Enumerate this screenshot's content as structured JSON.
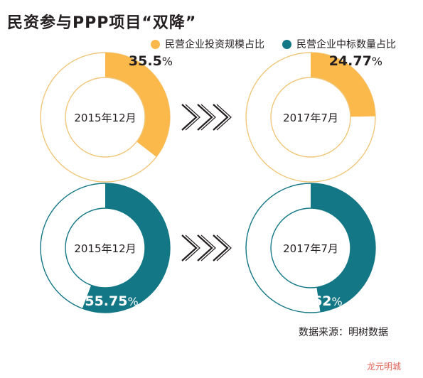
{
  "title": "民资参与PPP项目“双降”",
  "source": "数据来源：明树数据",
  "watermark": "龙元明城",
  "colors": {
    "orange": "#fbb84b",
    "teal": "#137785",
    "ring_outline": "#f0c77a"
  },
  "chart_data": [
    {
      "type": "pie",
      "series_name": "民营企业投资规模占比",
      "color": "#fbb84b",
      "points": [
        {
          "period": "2015年12月",
          "value": 35.5,
          "label": "35.5",
          "unit": "%"
        },
        {
          "period": "2017年7月",
          "value": 24.77,
          "label": "24.77",
          "unit": "%"
        }
      ]
    },
    {
      "type": "pie",
      "series_name": "民营企业中标数量占比",
      "color": "#137785",
      "points": [
        {
          "period": "2015年12月",
          "value": 55.75,
          "label": "55.75",
          "unit": "%"
        },
        {
          "period": "2017年7月",
          "value": 47.62,
          "label": "47.62",
          "unit": "%"
        }
      ]
    }
  ]
}
